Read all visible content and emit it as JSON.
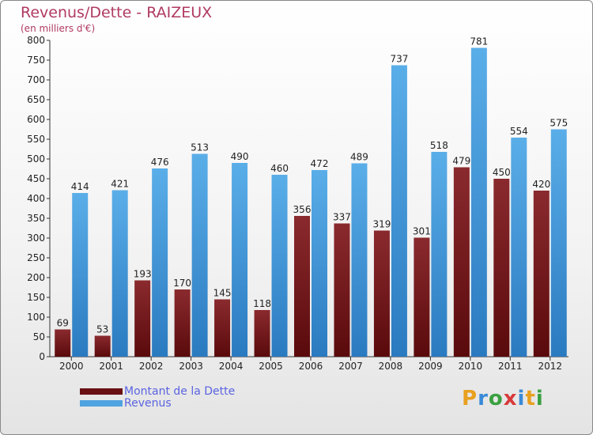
{
  "title": "Revenus/Dette - RAIZEUX",
  "subtitle": "(en milliers d'€)",
  "logo": "Proxiti",
  "legend": {
    "debt_label": "Montant de la Dette",
    "revenue_label": "Revenus"
  },
  "colors": {
    "debt": "#7a1e22",
    "revenue": "#4fa3e0",
    "title": "#b03a62",
    "legend_text": "#5a64e0"
  },
  "chart_data": {
    "type": "bar",
    "title": "Revenus/Dette - RAIZEUX",
    "subtitle": "(en milliers d'€)",
    "categories": [
      "2000",
      "2001",
      "2002",
      "2003",
      "2004",
      "2005",
      "2006",
      "2007",
      "2008",
      "2009",
      "2010",
      "2011",
      "2012"
    ],
    "series": [
      {
        "name": "Montant de la Dette",
        "values": [
          69,
          53,
          193,
          170,
          145,
          118,
          356,
          337,
          319,
          301,
          479,
          450,
          420
        ]
      },
      {
        "name": "Revenus",
        "values": [
          414,
          421,
          476,
          513,
          490,
          460,
          472,
          489,
          737,
          518,
          781,
          554,
          575
        ]
      }
    ],
    "ylim": [
      0,
      800
    ],
    "yticks": [
      0,
      50,
      100,
      150,
      200,
      250,
      300,
      350,
      400,
      450,
      500,
      550,
      600,
      650,
      700,
      750,
      800
    ],
    "grid": false,
    "legend_position": "bottom-left"
  }
}
